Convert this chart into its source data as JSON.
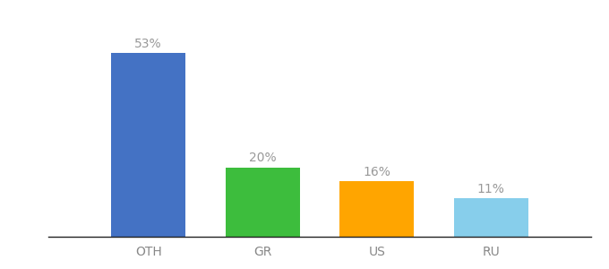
{
  "categories": [
    "OTH",
    "GR",
    "US",
    "RU"
  ],
  "values": [
    53,
    20,
    16,
    11
  ],
  "labels": [
    "53%",
    "20%",
    "16%",
    "11%"
  ],
  "bar_colors": [
    "#4472C4",
    "#3DBD3D",
    "#FFA500",
    "#87CEEB"
  ],
  "background_color": "#ffffff",
  "label_fontsize": 10,
  "tick_fontsize": 10,
  "ylim": [
    0,
    62
  ],
  "bar_width": 0.65
}
